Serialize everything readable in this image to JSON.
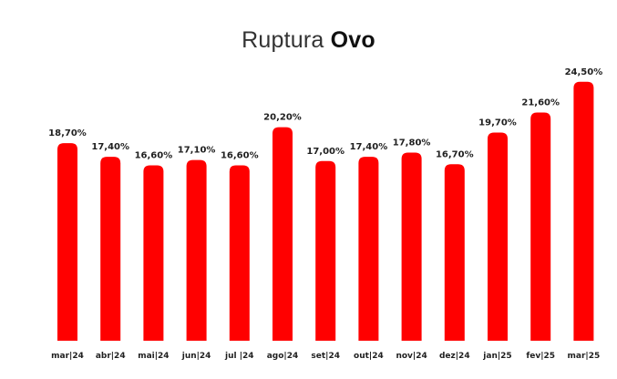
{
  "title": {
    "light": "Ruptura",
    "strong": "Ovo"
  },
  "colors": {
    "bar": "#ff0000",
    "text": "#1f1f1f",
    "background": "#ffffff"
  },
  "chart_data": {
    "type": "bar",
    "title": "Ruptura Ovo",
    "xlabel": "",
    "ylabel": "",
    "grid": false,
    "legend": "none",
    "ylim": [
      0,
      25
    ],
    "categories": [
      "mar|24",
      "abr|24",
      "mai|24",
      "jun|24",
      "jul |24",
      "ago|24",
      "set|24",
      "out|24",
      "nov|24",
      "dez|24",
      "jan|25",
      "fev|25",
      "mar|25"
    ],
    "values": [
      18.7,
      17.4,
      16.6,
      17.1,
      16.6,
      20.2,
      17.0,
      17.4,
      17.8,
      16.7,
      19.7,
      21.6,
      24.5
    ],
    "value_labels": [
      "18,70%",
      "17,40%",
      "16,60%",
      "17,10%",
      "16,60%",
      "20,20%",
      "17,00%",
      "17,40%",
      "17,80%",
      "16,70%",
      "19,70%",
      "21,60%",
      "24,50%"
    ]
  }
}
